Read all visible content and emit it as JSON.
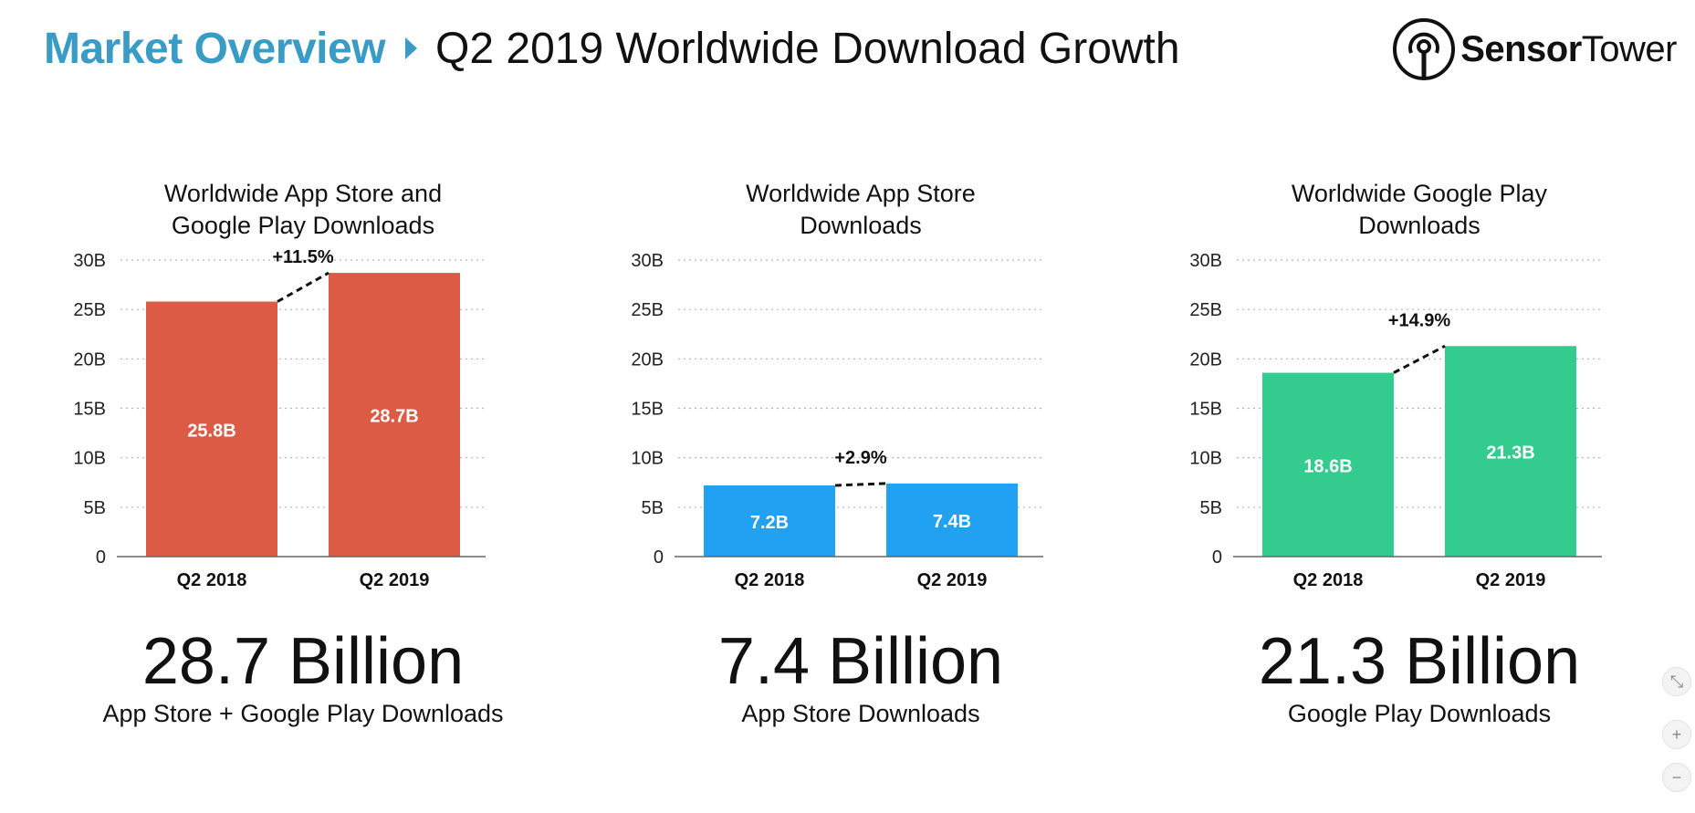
{
  "header": {
    "breadcrumb": "Market Overview",
    "title": "Q2 2019 Worldwide Download Growth"
  },
  "logo": {
    "text_bold": "Sensor",
    "text_regular": "Tower",
    "icon": "sensor-tower-logo-icon"
  },
  "colors": {
    "brand_blue": "#3a9bc4",
    "combined": "#db5b45",
    "app_store": "#21a1f1",
    "google_play": "#34cc8e"
  },
  "panels": [
    {
      "title_line1": "Worldwide App Store and",
      "title_line2": "Google Play Downloads",
      "big_number": "28.7 Billion",
      "subtitle": "App Store + Google Play Downloads"
    },
    {
      "title_line1": "Worldwide App Store",
      "title_line2": "Downloads",
      "big_number": "7.4 Billion",
      "subtitle": "App Store Downloads"
    },
    {
      "title_line1": "Worldwide Google Play",
      "title_line2": "Downloads",
      "big_number": "21.3 Billion",
      "subtitle": "Google Play Downloads"
    }
  ],
  "controls": {
    "collapse": "⤡",
    "zoom_in": "+",
    "zoom_out": "−"
  },
  "chart_data": [
    {
      "type": "bar",
      "title": "Worldwide App Store and Google Play Downloads",
      "categories": [
        "Q2 2018",
        "Q2 2019"
      ],
      "values": [
        25.8,
        28.7
      ],
      "value_labels": [
        "25.8B",
        "28.7B"
      ],
      "growth_label": "+11.5%",
      "color": "#db5b45",
      "ylim": [
        0,
        30
      ],
      "yticks": [
        0,
        5,
        10,
        15,
        20,
        25,
        30
      ],
      "ytick_labels": [
        "0",
        "5B",
        "10B",
        "15B",
        "20B",
        "25B",
        "30B"
      ],
      "grid": true,
      "legend": "none"
    },
    {
      "type": "bar",
      "title": "Worldwide App Store Downloads",
      "categories": [
        "Q2 2018",
        "Q2 2019"
      ],
      "values": [
        7.2,
        7.4
      ],
      "value_labels": [
        "7.2B",
        "7.4B"
      ],
      "growth_label": "+2.9%",
      "color": "#21a1f1",
      "ylim": [
        0,
        30
      ],
      "yticks": [
        0,
        5,
        10,
        15,
        20,
        25,
        30
      ],
      "ytick_labels": [
        "0",
        "5B",
        "10B",
        "15B",
        "20B",
        "25B",
        "30B"
      ],
      "grid": true,
      "legend": "none"
    },
    {
      "type": "bar",
      "title": "Worldwide Google Play Downloads",
      "categories": [
        "Q2 2018",
        "Q2 2019"
      ],
      "values": [
        18.6,
        21.3
      ],
      "value_labels": [
        "18.6B",
        "21.3B"
      ],
      "growth_label": "+14.9%",
      "color": "#34cc8e",
      "ylim": [
        0,
        30
      ],
      "yticks": [
        0,
        5,
        10,
        15,
        20,
        25,
        30
      ],
      "ytick_labels": [
        "0",
        "5B",
        "10B",
        "15B",
        "20B",
        "25B",
        "30B"
      ],
      "grid": true,
      "legend": "none"
    }
  ]
}
